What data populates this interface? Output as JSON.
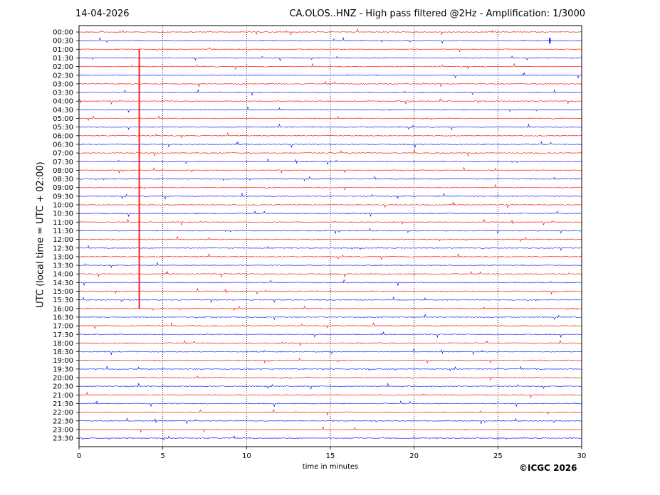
{
  "header": {
    "date": "14-04-2026",
    "title": "CA.OLOS..HNZ - High pass filtered @2Hz - Amplification: 1/3000"
  },
  "footer": {
    "copyright": "©ICGC 2026"
  },
  "colors": {
    "trace_a": "#ff0000",
    "trace_b": "#0000ff",
    "grid": "#000000",
    "frame": "#000000"
  },
  "chart_data": {
    "type": "line",
    "plot_kind": "helicorder",
    "xlabel": "time in minutes",
    "ylabel": "UTC (local time = UTC + 02:00)",
    "xlim": [
      0,
      30
    ],
    "x_ticks": [
      0,
      5,
      10,
      15,
      20,
      25,
      30
    ],
    "vertical_gridlines_at": [
      5,
      10,
      15,
      20,
      25
    ],
    "grid": "vertical dotted",
    "row_labels": [
      "00:00",
      "00:30",
      "01:00",
      "01:30",
      "02:00",
      "02:30",
      "03:00",
      "03:30",
      "04:00",
      "04:30",
      "05:00",
      "05:30",
      "06:00",
      "06:30",
      "07:00",
      "07:30",
      "08:00",
      "08:30",
      "09:00",
      "09:30",
      "10:00",
      "10:30",
      "11:00",
      "11:30",
      "12:00",
      "12:30",
      "13:00",
      "13:30",
      "14:00",
      "14:30",
      "15:00",
      "15:30",
      "16:00",
      "16:30",
      "17:00",
      "17:30",
      "18:00",
      "18:30",
      "19:00",
      "19:30",
      "20:00",
      "20:30",
      "21:00",
      "21:30",
      "22:00",
      "22:30",
      "23:00",
      "23:30"
    ],
    "row_colors": "alternating red / blue starting with red at 00:00",
    "notable_events": [
      {
        "label": "large vertical spike",
        "row_start": "01:00",
        "row_end": "16:00",
        "x_minutes": 3.6
      },
      {
        "label": "event",
        "row": "00:30",
        "x_minutes": 28.1
      }
    ]
  }
}
